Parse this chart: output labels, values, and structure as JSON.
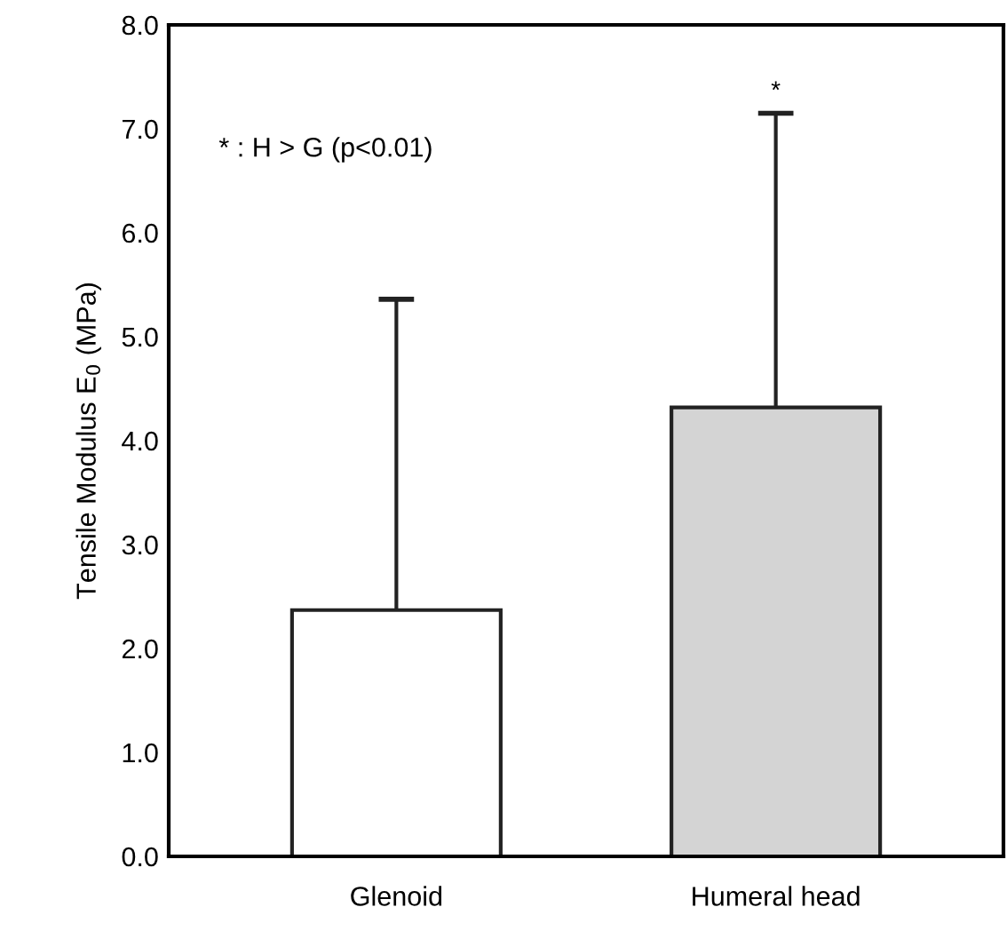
{
  "chart_data": {
    "type": "bar",
    "ylabel": "Tensile Modulus E$_{0}$ (MPa)",
    "categories": [
      "Glenoid",
      "Humeral head"
    ],
    "values": [
      2.37,
      4.32
    ],
    "colors": [
      "#ffffff",
      "#d4d4d4"
    ],
    "errors": [
      [
        2.37,
        5.36
      ],
      [
        4.32,
        7.15
      ]
    ],
    "ylim": [
      0,
      8
    ],
    "yticks": [
      {
        "value": 0,
        "label": "0.0"
      },
      {
        "value": 1,
        "label": "1.0"
      },
      {
        "value": 2,
        "label": "2.0"
      },
      {
        "value": 3,
        "label": "3.0"
      },
      {
        "value": 4,
        "label": "4.0"
      },
      {
        "value": 5,
        "label": "5.0"
      },
      {
        "value": 6,
        "label": "6.0"
      },
      {
        "value": 7,
        "label": "7.0"
      },
      {
        "value": 8,
        "label": "8.0"
      }
    ],
    "annotations": [
      "* : H > G (p<0.01)",
      {
        "text": "*",
        "x": "Humeral head",
        "y": 7.15
      }
    ],
    "grid": false
  }
}
